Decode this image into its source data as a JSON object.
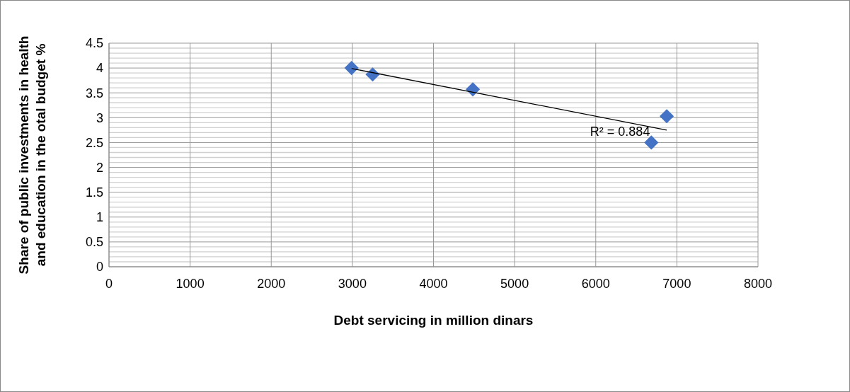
{
  "chart_data": {
    "type": "scatter",
    "xlabel": "Debt servicing in million dinars",
    "ylabel": "Share of public investments in health and education in the otal budget %",
    "x": [
      2990,
      3250,
      4485,
      6685,
      6875
    ],
    "series": [
      {
        "color": "#4472c4",
        "values": [
          4.0,
          3.87,
          3.57,
          2.5,
          3.03
        ],
        "marker": "diamond"
      },
      {
        "type": "line",
        "color": "#000000",
        "x": [
          2990,
          6875
        ],
        "values": [
          3.99,
          2.75
        ],
        "marker": "none"
      }
    ],
    "xlim": [
      0,
      8000
    ],
    "xticks": [
      0,
      1000,
      2000,
      3000,
      4000,
      5000,
      6000,
      7000,
      8000
    ],
    "ylim": [
      0,
      4.5
    ],
    "yticks": [
      0,
      {
        "value": 0.1,
        "label": null
      },
      {
        "value": 0.2,
        "label": null
      },
      {
        "value": 0.3,
        "label": null
      },
      {
        "value": 0.4,
        "label": null
      },
      0.5,
      {
        "value": 0.6,
        "label": null
      },
      {
        "value": 0.7,
        "label": null
      },
      {
        "value": 0.8,
        "label": null
      },
      {
        "value": 0.9,
        "label": null
      },
      1,
      {
        "value": 1.1,
        "label": null
      },
      {
        "value": 1.2,
        "label": null
      },
      {
        "value": 1.3,
        "label": null
      },
      {
        "value": 1.4,
        "label": null
      },
      1.5,
      {
        "value": 1.6,
        "label": null
      },
      {
        "value": 1.7,
        "label": null
      },
      {
        "value": 1.8,
        "label": null
      },
      {
        "value": 1.9,
        "label": null
      },
      2,
      {
        "value": 2.1,
        "label": null
      },
      {
        "value": 2.2,
        "label": null
      },
      {
        "value": 2.3,
        "label": null
      },
      {
        "value": 2.4,
        "label": null
      },
      2.5,
      {
        "value": 2.6,
        "label": null
      },
      {
        "value": 2.7,
        "label": null
      },
      {
        "value": 2.8,
        "label": null
      },
      {
        "value": 2.9,
        "label": null
      },
      3,
      {
        "value": 3.1,
        "label": null
      },
      {
        "value": 3.2,
        "label": null
      },
      {
        "value": 3.3,
        "label": null
      },
      {
        "value": 3.4,
        "label": null
      },
      3.5,
      {
        "value": 3.6,
        "label": null
      },
      {
        "value": 3.7,
        "label": null
      },
      {
        "value": 3.8,
        "label": null
      },
      {
        "value": 3.9,
        "label": null
      },
      4,
      {
        "value": 4.1,
        "label": null
      },
      {
        "value": 4.2,
        "label": null
      },
      {
        "value": 4.3,
        "label": null
      },
      {
        "value": 4.4,
        "label": null
      },
      4.5
    ],
    "grid": true,
    "annotations": [
      "R² = 0.884"
    ]
  }
}
